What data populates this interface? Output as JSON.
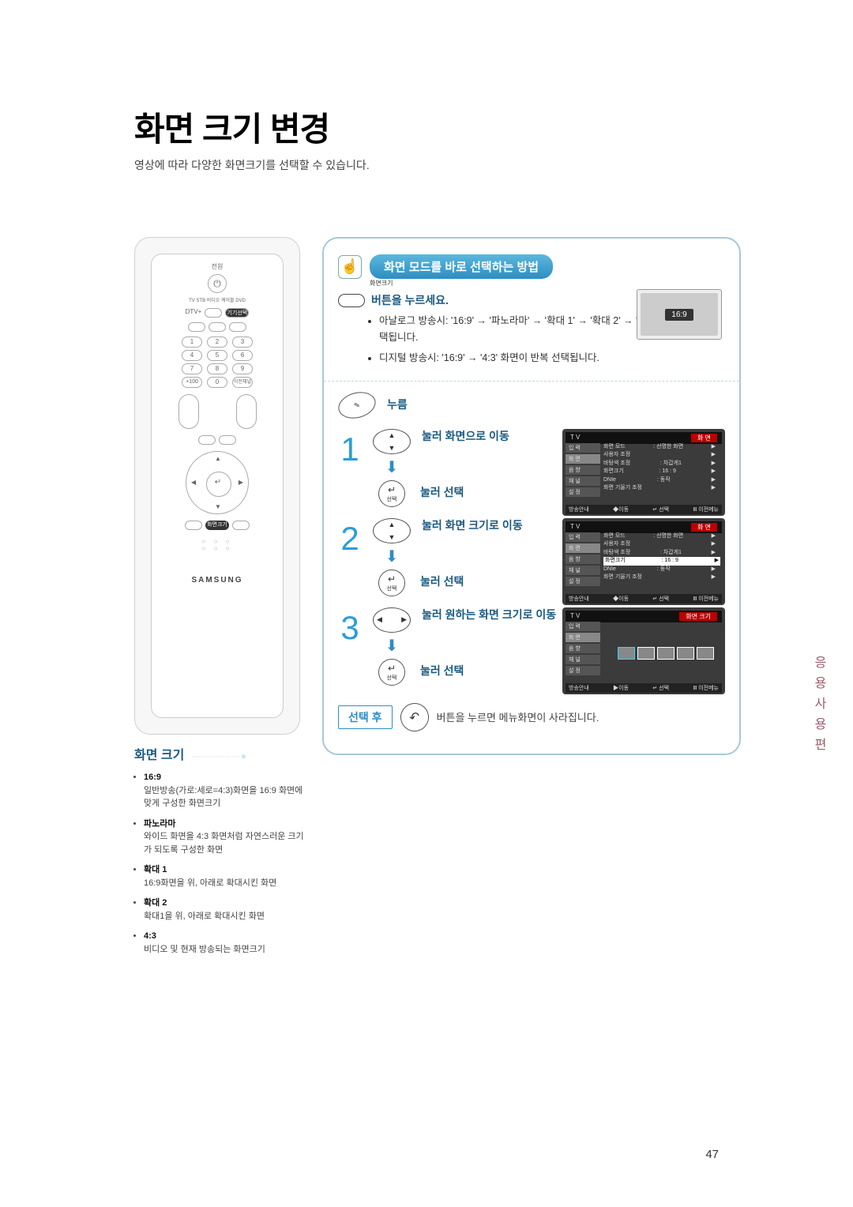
{
  "pagenum": "47",
  "title": "화면 크기 변경",
  "subtitle": "영상에 따라 다양한 화면크기를 선택할 수 있습니다.",
  "sidetab": "응용사용편",
  "remote": {
    "brand": "SAMSUNG",
    "top_label": "전원",
    "mode_labels": "TV  STB  비디오  케이블  DVD",
    "dtv": "DTV+",
    "enter": "↵",
    "enter_sub": "선택",
    "highlight": "화면크기"
  },
  "callout": {
    "title": "화면 모드를 바로 선택하는 방법",
    "btn_tiny_label": "화면크기",
    "press": "버튼을 누르세요.",
    "bullets": [
      "아날로그 방송시: '16:9' → '파노라마' → '확대 1' → '확대 2' → '4:3' 화면이 반복 선택됩니다.",
      "디지털 방송시: '16:9' → '4:3' 화면이 반복 선택됩니다."
    ],
    "tv_thumb_label": "16:9"
  },
  "step_menu_label": "누름",
  "steps": [
    {
      "num": "1",
      "move": "눌러 화면으로 이동",
      "select": "눌러 선택"
    },
    {
      "num": "2",
      "move": "눌러 화면 크기로 이동",
      "select": "눌러 선택"
    },
    {
      "num": "3",
      "move": "눌러 원하는 화면 크기로 이동",
      "select": "눌러 선택"
    }
  ],
  "osd": {
    "left_tabs": [
      "입 력",
      "화 면",
      "음 향",
      "채 널",
      "설 정"
    ],
    "title_tv": "T V",
    "title_r": "화  면",
    "title_r3": "화면 크기",
    "rows": [
      {
        "k": "화면 모드",
        "v": ": 선명한 화면",
        "a": "▶"
      },
      {
        "k": "사용자 조정",
        "v": "",
        "a": "▶"
      },
      {
        "k": "바탕색 조정",
        "v": ": 차갑게1",
        "a": "▶"
      },
      {
        "k": "화면크기",
        "v": ": 16 : 9",
        "a": "▶"
      },
      {
        "k": "DNIe",
        "v": ": 동작",
        "a": "▶"
      },
      {
        "k": "화면 기울기 조정",
        "v": "",
        "a": "▶"
      }
    ],
    "footer_items": [
      "◆이동",
      "↵ 선택",
      "Ⅲ 이전메뉴"
    ],
    "footer_items3": [
      "▶이동",
      "↵ 선택",
      "Ⅲ 이전메뉴"
    ],
    "guide": "방송안내"
  },
  "after": {
    "label": "선택 후",
    "text": "버튼을 누르면 메뉴화면이 사라집니다."
  },
  "info": {
    "title": "화면 크기",
    "items": [
      {
        "h": "16:9",
        "d": "일반방송(가로:세로=4:3)화면을 16:9 화면에 맞게 구성한 화면크기"
      },
      {
        "h": "파노라마",
        "d": "와이드 화면을 4:3 화면처럼 자연스러운 크기가 되도록 구성한 화면"
      },
      {
        "h": "확대 1",
        "d": "16:9화면을 위, 아래로 확대시킨 화면"
      },
      {
        "h": "확대 2",
        "d": "확대1을 위, 아래로 확대시킨 화면"
      },
      {
        "h": "4:3",
        "d": "비디오 및 현재 방송되는 화면크기"
      }
    ]
  }
}
